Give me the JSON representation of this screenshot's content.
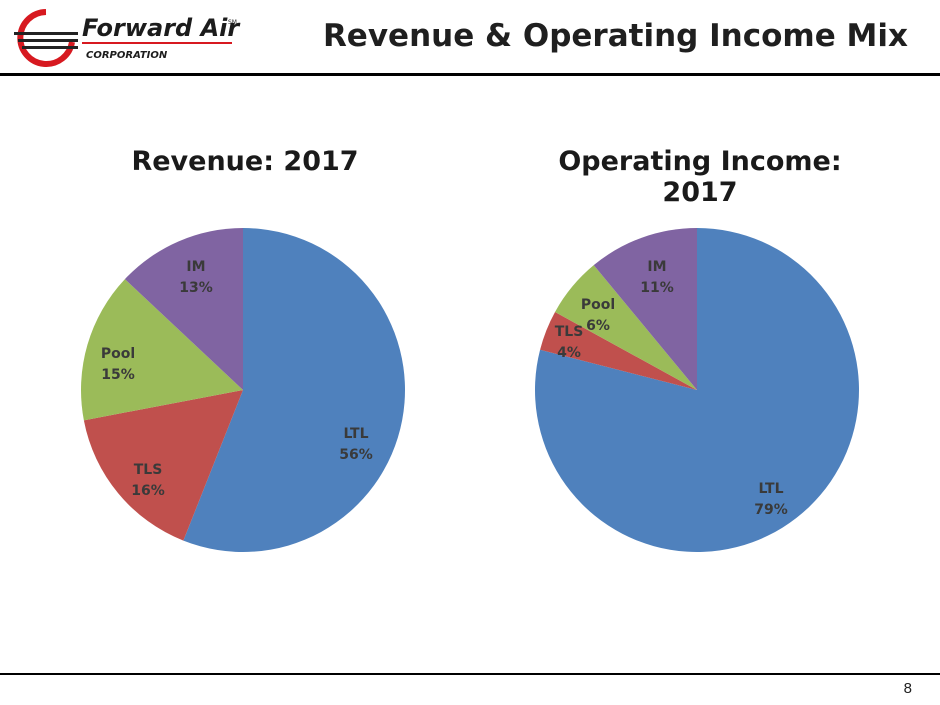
{
  "header": {
    "title": "Revenue & Operating Income Mix",
    "logo": {
      "name": "Forward Air",
      "trademark": "SM",
      "subtitle": "CORPORATION",
      "accent_color": "#d71920"
    }
  },
  "footer": {
    "page_number": "8"
  },
  "colors": {
    "LTL": "#4f81bd",
    "TLS": "#c0504d",
    "Pool": "#9bbb59",
    "IM": "#8064a2"
  },
  "chart_data": [
    {
      "type": "pie",
      "title": "Revenue: 2017",
      "slices": [
        {
          "label": "LTL",
          "value": 56,
          "display": "56%"
        },
        {
          "label": "TLS",
          "value": 16,
          "display": "16%"
        },
        {
          "label": "Pool",
          "value": 15,
          "display": "15%"
        },
        {
          "label": "IM",
          "value": 13,
          "display": "13%"
        }
      ]
    },
    {
      "type": "pie",
      "title": "Operating Income: 2017",
      "slices": [
        {
          "label": "LTL",
          "value": 79,
          "display": "79%"
        },
        {
          "label": "TLS",
          "value": 4,
          "display": "4%"
        },
        {
          "label": "Pool",
          "value": 6,
          "display": "6%"
        },
        {
          "label": "IM",
          "value": 11,
          "display": "11%"
        }
      ]
    }
  ]
}
